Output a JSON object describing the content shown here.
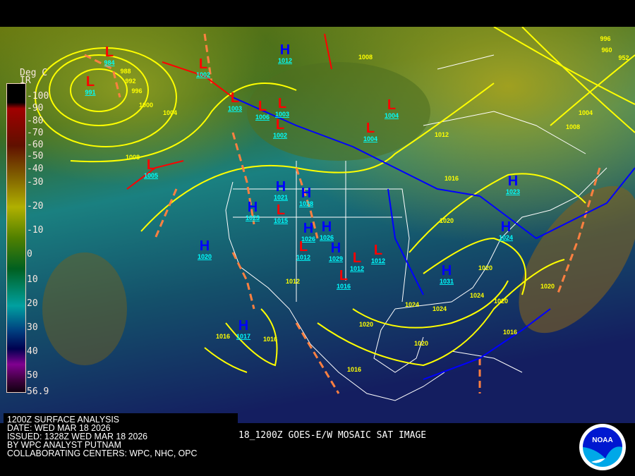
{
  "map": {
    "title_lines": [
      "1200Z SURFACE ANALYSIS",
      "DATE: WED MAR 18 2026",
      "ISSUED: 1328Z WED MAR 18 2026",
      "BY WPC ANALYST PUTNAM",
      "COLLABORATING CENTERS: WPC, NHC, OPC"
    ],
    "satellite_label": "18_1200Z GOES-E/W MOSAIC SAT IMAGE",
    "logo_text": "NOAA",
    "legend": {
      "title": "Deg C",
      "subtitle": "IR",
      "ticks": [
        "-100",
        "-90",
        "-80",
        "-70",
        "-60",
        "-50",
        "-40",
        "-30",
        "-20",
        "-10",
        "0",
        "10",
        "20",
        "30",
        "40",
        "50",
        "56.9"
      ]
    },
    "colors": {
      "isobar": "#ffff00",
      "high": "#0000ff",
      "low": "#ff0000",
      "trough": "#ff8040",
      "cold_front": "#0000ff",
      "warm_front": "#ff0000",
      "pressure_label": "#00ffff",
      "coast": "#ffffff"
    },
    "highs": [
      {
        "label": "1012"
      },
      {
        "label": "1020"
      },
      {
        "label": "1017"
      },
      {
        "label": "1021"
      },
      {
        "label": "1023"
      },
      {
        "label": "1028"
      },
      {
        "label": "1026"
      },
      {
        "label": "1029"
      },
      {
        "label": "1026"
      },
      {
        "label": "1031"
      },
      {
        "label": "1023"
      },
      {
        "label": "1024"
      }
    ],
    "lows": [
      {
        "label": "984"
      },
      {
        "label": "991"
      },
      {
        "label": "1002"
      },
      {
        "label": "1003"
      },
      {
        "label": "1006"
      },
      {
        "label": "1003"
      },
      {
        "label": "1002"
      },
      {
        "label": "1004"
      },
      {
        "label": "1004"
      },
      {
        "label": "1005"
      },
      {
        "label": "1015"
      },
      {
        "label": "1012"
      },
      {
        "label": "1012"
      },
      {
        "label": "1012"
      },
      {
        "label": "1016"
      }
    ],
    "isobar_labels": [
      "988",
      "992",
      "996",
      "1000",
      "1004",
      "1008",
      "1008",
      "1012",
      "1016",
      "1020",
      "1020",
      "1024",
      "1024",
      "1024",
      "1020",
      "1020",
      "1020",
      "1020",
      "1016",
      "1016",
      "1016",
      "1016",
      "1012",
      "996",
      "952",
      "960",
      "1004",
      "1008"
    ]
  }
}
